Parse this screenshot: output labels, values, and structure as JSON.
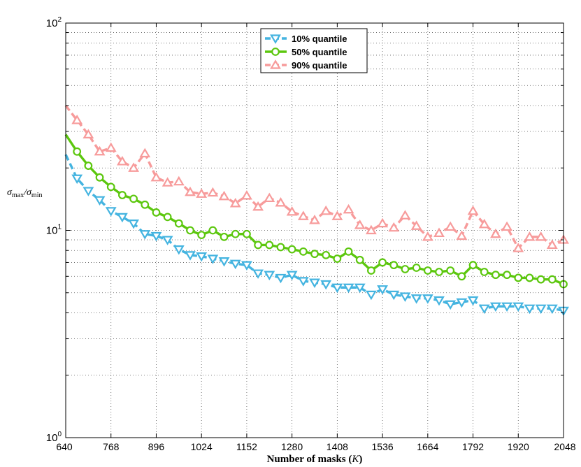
{
  "chart_data": {
    "type": "line",
    "xlabel_prefix": "Number of masks (",
    "xlabel_var": "K",
    "xlabel_suffix": ")",
    "ylabel_num": "σ",
    "ylabel_num_sub": "max",
    "ylabel_sep": "/σ",
    "ylabel_den_sub": "min",
    "yscale": "log",
    "xlim": [
      640,
      2048
    ],
    "ylim": [
      1,
      100
    ],
    "grid": true,
    "legend_position": "top-center",
    "x_ticks": [
      "640",
      "768",
      "896",
      "1024",
      "1152",
      "1280",
      "1408",
      "1536",
      "1664",
      "1792",
      "1920",
      "2048"
    ],
    "y_ticks": [
      {
        "base": "10",
        "exp": "0"
      },
      {
        "base": "10",
        "exp": "1"
      },
      {
        "base": "10",
        "exp": "2"
      }
    ],
    "x": [
      640,
      672,
      704,
      736,
      768,
      800,
      832,
      864,
      896,
      928,
      960,
      992,
      1024,
      1056,
      1088,
      1120,
      1152,
      1184,
      1216,
      1248,
      1280,
      1312,
      1344,
      1376,
      1408,
      1440,
      1472,
      1504,
      1536,
      1568,
      1600,
      1632,
      1664,
      1696,
      1728,
      1760,
      1792,
      1824,
      1856,
      1888,
      1920,
      1952,
      1984,
      2016,
      2048
    ],
    "series": [
      {
        "name": "10% quantile",
        "color": "#44b4e0",
        "style": "dashed",
        "marker": "triangle-down",
        "values": [
          23.2,
          17.8,
          15.5,
          14.0,
          12.4,
          11.6,
          10.8,
          9.6,
          9.4,
          9.0,
          8.1,
          7.6,
          7.5,
          7.3,
          7.1,
          6.9,
          6.8,
          6.2,
          6.1,
          5.9,
          6.1,
          5.7,
          5.6,
          5.5,
          5.3,
          5.3,
          5.3,
          4.9,
          5.2,
          4.9,
          4.8,
          4.7,
          4.7,
          4.6,
          4.4,
          4.5,
          4.6,
          4.2,
          4.3,
          4.3,
          4.3,
          4.2,
          4.2,
          4.2,
          4.1
        ]
      },
      {
        "name": "50% quantile",
        "color": "#5cc70e",
        "style": "solid",
        "marker": "circle",
        "values": [
          29.0,
          24.0,
          20.5,
          18.0,
          16.2,
          14.8,
          14.2,
          13.3,
          12.2,
          11.6,
          10.8,
          10.0,
          9.5,
          10.0,
          9.3,
          9.6,
          9.6,
          8.5,
          8.5,
          8.3,
          8.1,
          7.9,
          7.7,
          7.6,
          7.3,
          7.9,
          7.2,
          6.4,
          7.0,
          6.8,
          6.5,
          6.6,
          6.4,
          6.3,
          6.4,
          6.0,
          6.8,
          6.3,
          6.1,
          6.1,
          5.9,
          5.9,
          5.8,
          5.8,
          5.5
        ]
      },
      {
        "name": "90% quantile",
        "color": "#f79b9b",
        "style": "dashed",
        "marker": "triangle-up",
        "values": [
          40.0,
          34.0,
          29.0,
          24.0,
          25.0,
          21.5,
          20.0,
          23.5,
          18.0,
          17.0,
          17.2,
          15.3,
          15.0,
          15.2,
          14.6,
          13.5,
          14.7,
          13.0,
          14.3,
          13.6,
          12.3,
          11.7,
          11.2,
          12.4,
          11.7,
          12.6,
          10.6,
          10.0,
          10.8,
          10.3,
          11.8,
          10.5,
          9.3,
          9.7,
          10.4,
          9.4,
          12.4,
          10.7,
          9.6,
          10.4,
          8.2,
          9.3,
          9.3,
          8.5,
          9.0
        ]
      }
    ]
  }
}
